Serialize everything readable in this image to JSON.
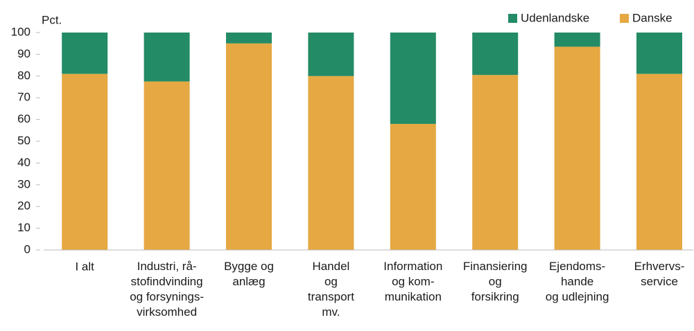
{
  "chart_data": {
    "type": "stacked_bar",
    "y_label": "Pct.",
    "categories": [
      "I alt",
      "Industri, rå-\nstofindvinding\nog forsynings-\nvirksomhed",
      "Bygge og\nanlæg",
      "Handel\nog\ntransport\nmv.",
      "Information\nog kom-\nmunikation",
      "Finansiering\nog\nforsikring",
      "Ejendoms-\nhande\nog udlejning",
      "Erhvervs-\nservice"
    ],
    "series": [
      {
        "name": "Danske",
        "color": "#e5a842",
        "values": [
          81,
          77.5,
          95,
          80,
          58,
          80.5,
          93.5,
          81
        ]
      },
      {
        "name": "Udenlandske",
        "color": "#238b65",
        "values": [
          19,
          22.5,
          5,
          20,
          42,
          19.5,
          6.5,
          19
        ]
      }
    ],
    "legend_order": [
      "Udenlandske",
      "Danske"
    ],
    "ylim": [
      0,
      100
    ],
    "yticks": [
      0,
      10,
      20,
      30,
      40,
      50,
      60,
      70,
      80,
      90,
      100
    ],
    "grid": false
  }
}
